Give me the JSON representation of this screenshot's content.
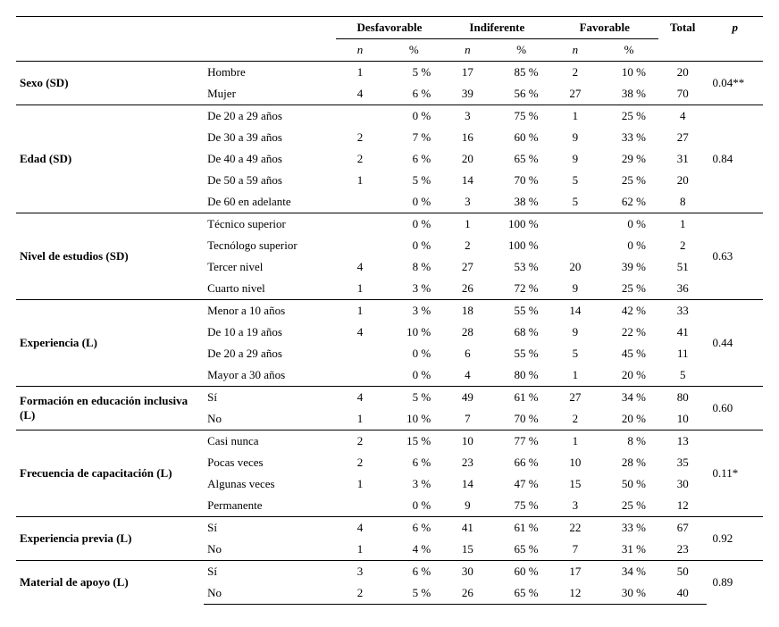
{
  "columns": {
    "desfavorable": "Desfavorable",
    "indiferente": "Indiferente",
    "favorable": "Favorable",
    "total": "Total",
    "p": "p",
    "n": "n",
    "pct": "%"
  },
  "groups": [
    {
      "label": "Sexo (SD)",
      "p": "0.04**",
      "rows": [
        {
          "cat": "Hombre",
          "dn": "1",
          "dp": "5 %",
          "in": "17",
          "ip": "85 %",
          "fn": "2",
          "fp": "10 %",
          "tot": "20"
        },
        {
          "cat": "Mujer",
          "dn": "4",
          "dp": "6 %",
          "in": "39",
          "ip": "56 %",
          "fn": "27",
          "fp": "38 %",
          "tot": "70"
        }
      ]
    },
    {
      "label": "Edad (SD)",
      "p": "0.84",
      "rows": [
        {
          "cat": "De 20 a 29 años",
          "dn": "",
          "dp": "0 %",
          "in": "3",
          "ip": "75 %",
          "fn": "1",
          "fp": "25 %",
          "tot": "4"
        },
        {
          "cat": "De 30 a 39 años",
          "dn": "2",
          "dp": "7 %",
          "in": "16",
          "ip": "60 %",
          "fn": "9",
          "fp": "33 %",
          "tot": "27"
        },
        {
          "cat": "De 40 a 49 años",
          "dn": "2",
          "dp": "6 %",
          "in": "20",
          "ip": "65 %",
          "fn": "9",
          "fp": "29 %",
          "tot": "31"
        },
        {
          "cat": "De 50 a 59 años",
          "dn": "1",
          "dp": "5 %",
          "in": "14",
          "ip": "70 %",
          "fn": "5",
          "fp": "25 %",
          "tot": "20"
        },
        {
          "cat": "De 60 en adelante",
          "dn": "",
          "dp": "0 %",
          "in": "3",
          "ip": "38 %",
          "fn": "5",
          "fp": "62 %",
          "tot": "8"
        }
      ]
    },
    {
      "label": "Nivel de estudios (SD)",
      "p": "0.63",
      "rows": [
        {
          "cat": "Técnico superior",
          "dn": "",
          "dp": "0 %",
          "in": "1",
          "ip": "100 %",
          "fn": "",
          "fp": "0 %",
          "tot": "1"
        },
        {
          "cat": "Tecnólogo superior",
          "dn": "",
          "dp": "0 %",
          "in": "2",
          "ip": "100 %",
          "fn": "",
          "fp": "0 %",
          "tot": "2"
        },
        {
          "cat": "Tercer nivel",
          "dn": "4",
          "dp": "8 %",
          "in": "27",
          "ip": "53 %",
          "fn": "20",
          "fp": "39 %",
          "tot": "51"
        },
        {
          "cat": "Cuarto nivel",
          "dn": "1",
          "dp": "3 %",
          "in": "26",
          "ip": "72 %",
          "fn": "9",
          "fp": "25 %",
          "tot": "36"
        }
      ]
    },
    {
      "label": "Experiencia (L)",
      "p": "0.44",
      "rows": [
        {
          "cat": "Menor a 10 años",
          "dn": "1",
          "dp": "3 %",
          "in": "18",
          "ip": "55 %",
          "fn": "14",
          "fp": "42 %",
          "tot": "33"
        },
        {
          "cat": "De 10 a 19 años",
          "dn": "4",
          "dp": "10 %",
          "in": "28",
          "ip": "68 %",
          "fn": "9",
          "fp": "22 %",
          "tot": "41"
        },
        {
          "cat": "De 20 a 29 años",
          "dn": "",
          "dp": "0 %",
          "in": "6",
          "ip": "55 %",
          "fn": "5",
          "fp": "45 %",
          "tot": "11"
        },
        {
          "cat": "Mayor a 30 años",
          "dn": "",
          "dp": "0 %",
          "in": "4",
          "ip": "80 %",
          "fn": "1",
          "fp": "20 %",
          "tot": "5"
        }
      ]
    },
    {
      "label": "Formación en educación inclusiva (L)",
      "p": "0.60",
      "rows": [
        {
          "cat": "Sí",
          "dn": "4",
          "dp": "5 %",
          "in": "49",
          "ip": "61 %",
          "fn": "27",
          "fp": "34 %",
          "tot": "80"
        },
        {
          "cat": "No",
          "dn": "1",
          "dp": "10 %",
          "in": "7",
          "ip": "70 %",
          "fn": "2",
          "fp": "20 %",
          "tot": "10"
        }
      ]
    },
    {
      "label": "Frecuencia de capacitación (L)",
      "p": "0.11*",
      "rows": [
        {
          "cat": "Casi nunca",
          "dn": "2",
          "dp": "15 %",
          "in": "10",
          "ip": "77 %",
          "fn": "1",
          "fp": "8 %",
          "tot": "13"
        },
        {
          "cat": "Pocas veces",
          "dn": "2",
          "dp": "6 %",
          "in": "23",
          "ip": "66 %",
          "fn": "10",
          "fp": "28 %",
          "tot": "35"
        },
        {
          "cat": "Algunas veces",
          "dn": "1",
          "dp": "3 %",
          "in": "14",
          "ip": "47 %",
          "fn": "15",
          "fp": "50 %",
          "tot": "30"
        },
        {
          "cat": "Permanente",
          "dn": "",
          "dp": "0 %",
          "in": "9",
          "ip": "75 %",
          "fn": "3",
          "fp": "25 %",
          "tot": "12"
        }
      ]
    },
    {
      "label": "Experiencia previa (L)",
      "p": "0.92",
      "rows": [
        {
          "cat": "Sí",
          "dn": "4",
          "dp": "6 %",
          "in": "41",
          "ip": "61 %",
          "fn": "22",
          "fp": "33 %",
          "tot": "67"
        },
        {
          "cat": "No",
          "dn": "1",
          "dp": "4 %",
          "in": "15",
          "ip": "65 %",
          "fn": "7",
          "fp": "31 %",
          "tot": "23"
        }
      ]
    },
    {
      "label": "Material de apoyo (L)",
      "p": "0.89",
      "rows": [
        {
          "cat": "Sí",
          "dn": "3",
          "dp": "6 %",
          "in": "30",
          "ip": "60 %",
          "fn": "17",
          "fp": "34 %",
          "tot": "50"
        },
        {
          "cat": "No",
          "dn": "2",
          "dp": "5 %",
          "in": "26",
          "ip": "65 %",
          "fn": "12",
          "fp": "30 %",
          "tot": "40"
        }
      ]
    }
  ],
  "style": {
    "font_family": "Times New Roman",
    "font_size_pt": 10,
    "border_color": "#000000",
    "background_color": "#ffffff",
    "text_color": "#000000"
  }
}
